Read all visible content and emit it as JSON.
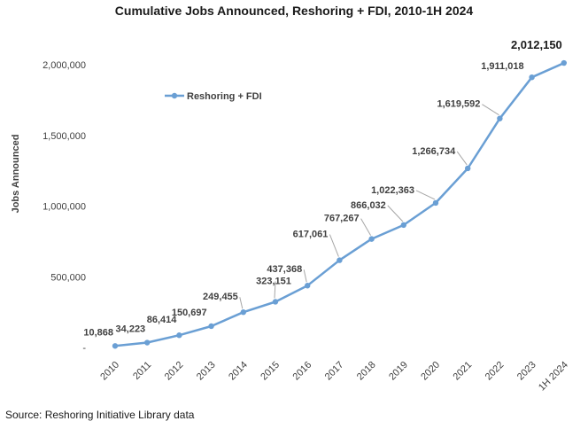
{
  "chart_data": {
    "type": "line",
    "title": "Cumulative Jobs Announced, Reshoring + FDI, 2010-1H 2024",
    "xlabel": "",
    "ylabel": "Jobs Announced",
    "categories": [
      "2010",
      "2011",
      "2012",
      "2013",
      "2014",
      "2015",
      "2016",
      "2017",
      "2018",
      "2019",
      "2020",
      "2021",
      "2022",
      "2023",
      "1H 2024"
    ],
    "series": [
      {
        "name": "Reshoring + FDI",
        "color": "#6a9fd4",
        "values": [
          10868,
          34223,
          86414,
          150697,
          249455,
          323151,
          437368,
          617061,
          767267,
          866032,
          1022363,
          1266734,
          1619592,
          1911018,
          2012150
        ],
        "labels": [
          "10,868",
          "34,223",
          "86,414",
          "150,697",
          "249,455",
          "323,151",
          "437,368",
          "617,061",
          "767,267",
          "866,032",
          "1,022,363",
          "1,266,734",
          "1,619,592",
          "1,911,018",
          "2,012,150"
        ]
      }
    ],
    "ylim": [
      0,
      2000000
    ],
    "yticks": [
      0,
      500000,
      1000000,
      1500000,
      2000000
    ],
    "ytick_labels": [
      "-",
      "500,000",
      "1,000,000",
      "1,500,000",
      "2,000,000"
    ],
    "grid": false,
    "legend": "upper-left"
  },
  "source_text": "Source: Reshoring Initiative Library data"
}
